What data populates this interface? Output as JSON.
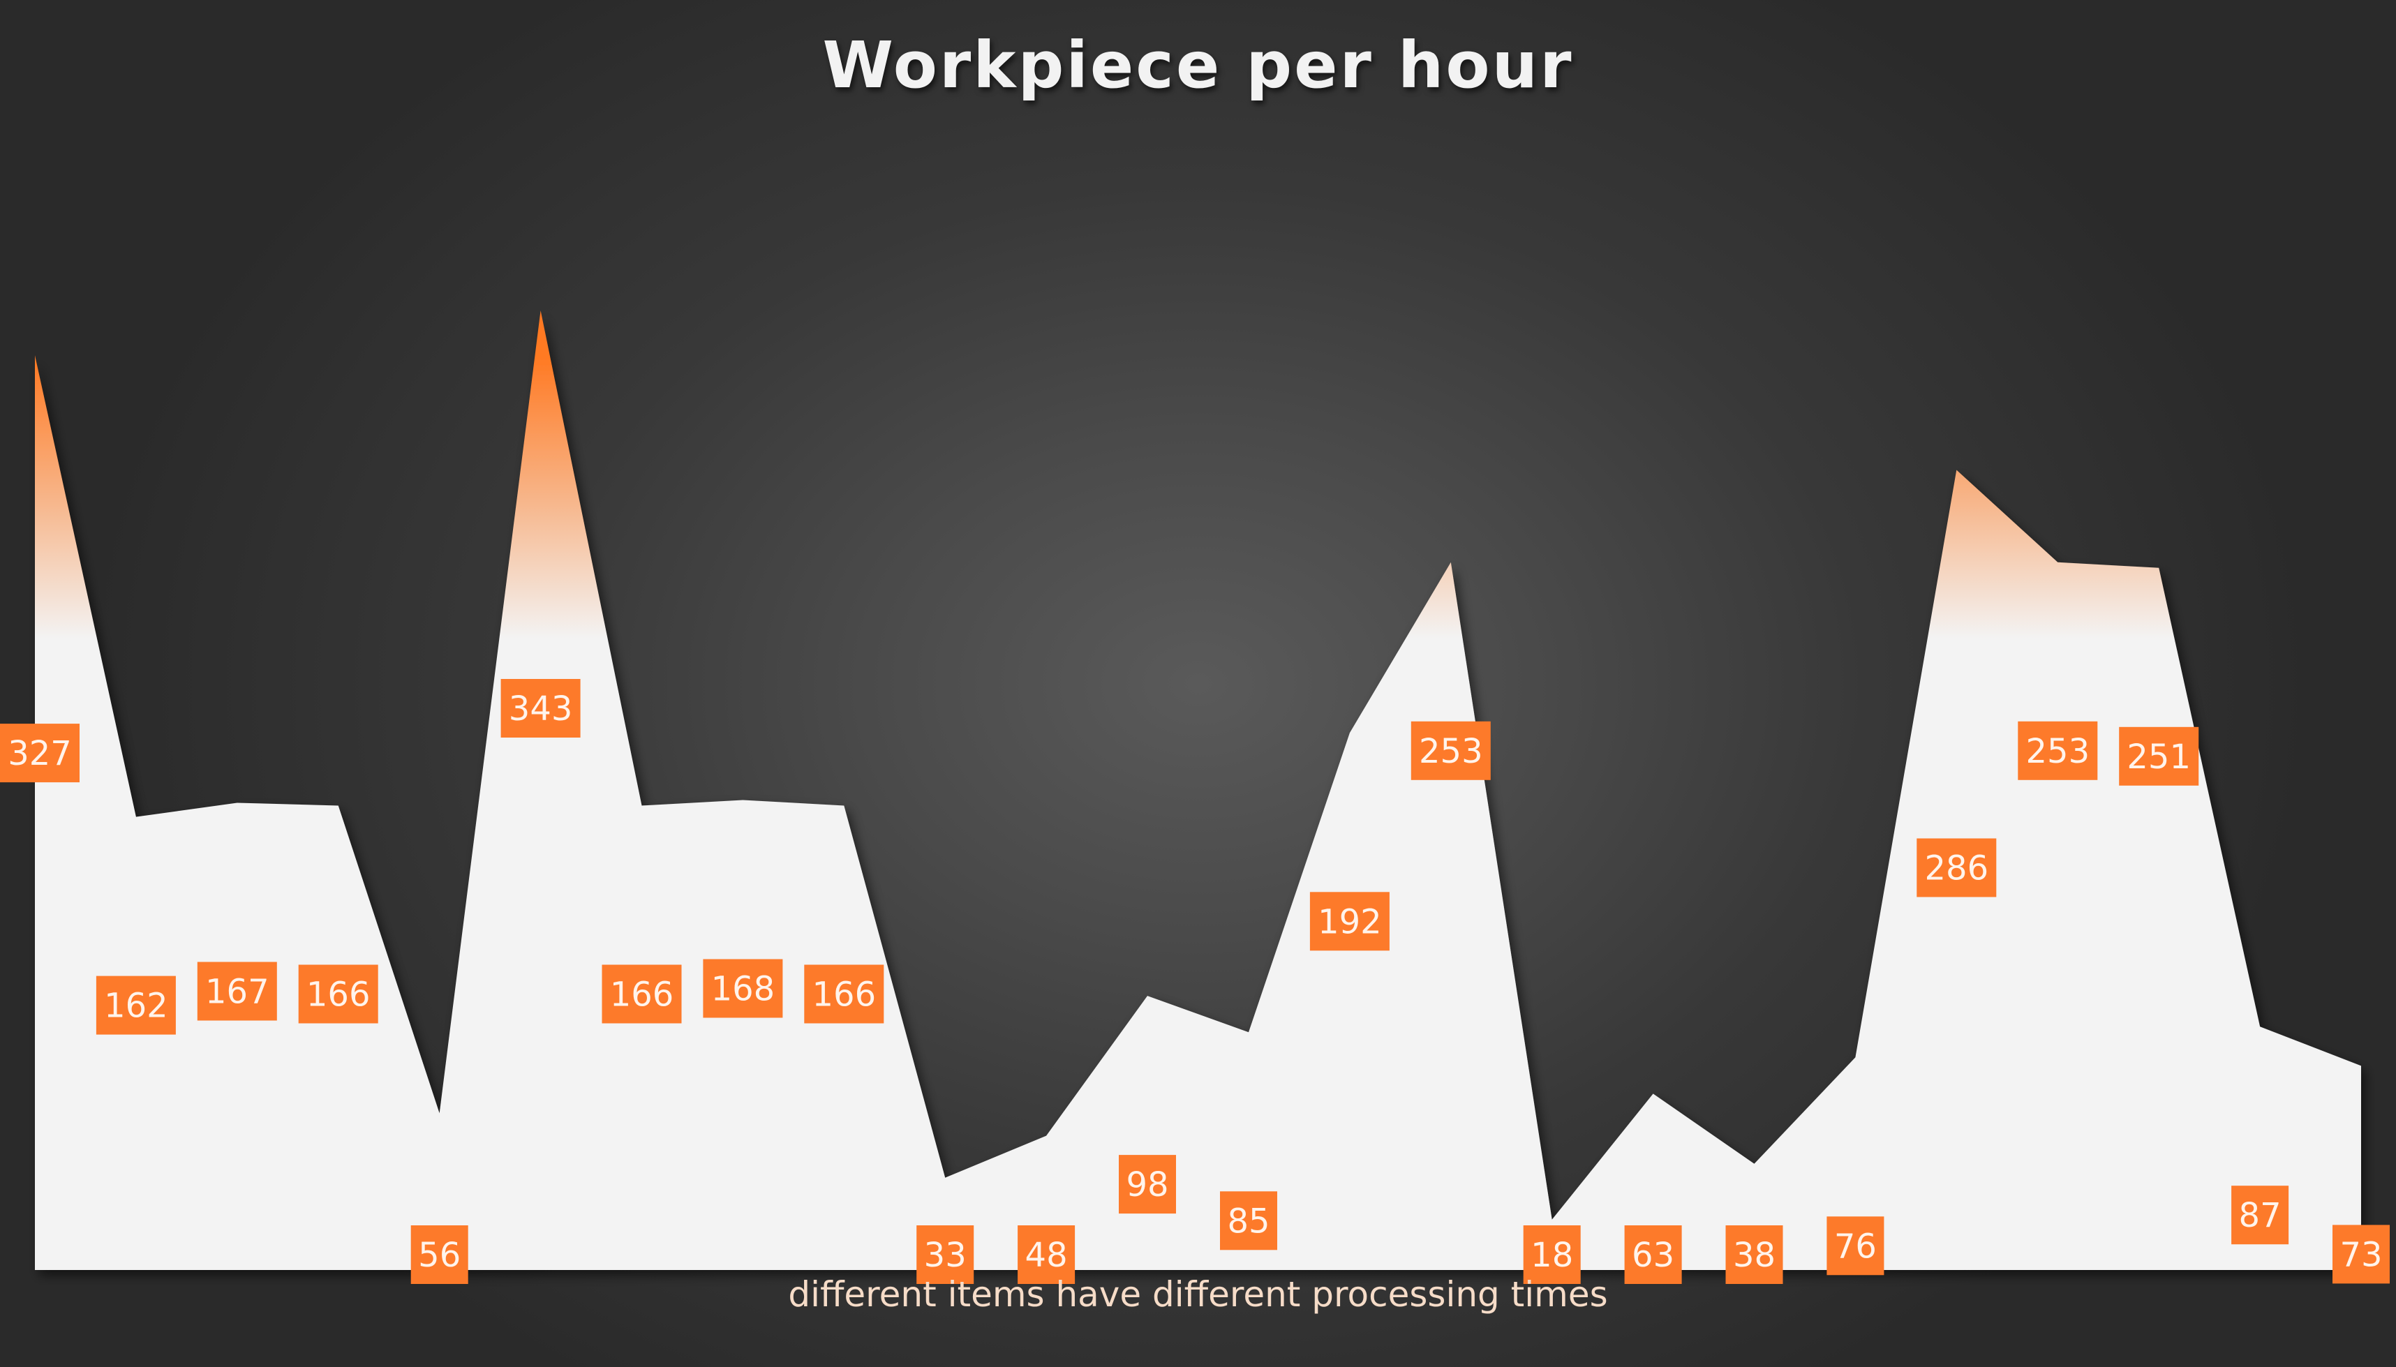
{
  "chart_data": {
    "type": "area",
    "title": "Workpiece per hour",
    "xlabel": "different items have different processing times",
    "ylabel": "",
    "values": [
      327,
      162,
      167,
      166,
      56,
      343,
      166,
      168,
      166,
      33,
      48,
      98,
      85,
      192,
      253,
      18,
      63,
      38,
      76,
      286,
      253,
      251,
      87,
      73
    ],
    "ylim": [
      0,
      380
    ],
    "grid": false,
    "legend": "none",
    "data_labels": true,
    "colors": {
      "accent": "#ff7722",
      "area_light": "#f3f3f3",
      "label_bg": "#fd7a2a",
      "label_text": "#fff4ec",
      "background": "#3a3a3a"
    }
  }
}
